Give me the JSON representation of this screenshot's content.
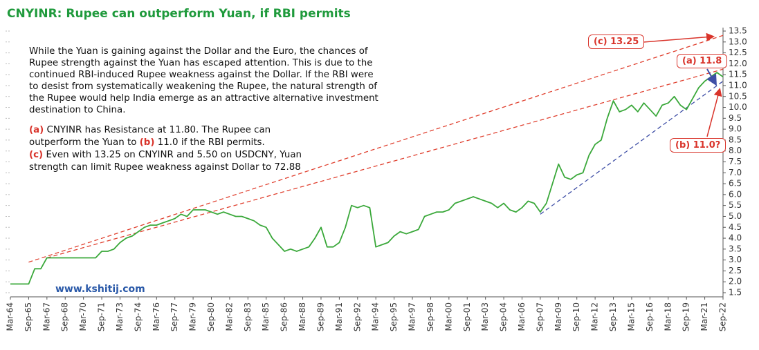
{
  "chart_data": {
    "type": "line",
    "title": "CNYINR: Rupee can outperform Yuan, if RBI permits",
    "paragraph": "While the Yuan is gaining against the Dollar and the Euro, the chances of Rupee strength against the Yuan has escaped attention. This is due to the continued RBI-induced Rupee weakness against the Dollar. If the RBI were to desist from systematically weakening the Rupee, the natural strength of the Rupee would help India emerge as an attractive alternative investment destination to China.",
    "notes": [
      {
        "tag": "(a)",
        "text": "CNYINR has Resistance at 11.80. The Rupee can outperform the Yuan to",
        "tag2": "(b)",
        "text2": "11.0 if the RBI permits."
      },
      {
        "tag": "(c)",
        "text": "Even with 13.25 on CNYINR and 5.50 on USDCNY, Yuan strength can limit Rupee weakness against Dollar to 72.88"
      }
    ],
    "website": "www.kshitij.com",
    "callouts": {
      "c": "(c) 13.25",
      "a": "(a) 11.8",
      "b": "(b) 11.0?"
    },
    "categories": [
      "Mar-64",
      null,
      null,
      "Sep-65",
      null,
      null,
      "Mar-67",
      null,
      null,
      "Sep-68",
      null,
      null,
      "Mar-70",
      null,
      null,
      "Sep-71",
      null,
      null,
      "Mar-73",
      null,
      null,
      "Sep-74",
      null,
      null,
      "Mar-76",
      null,
      null,
      "Sep-77",
      null,
      null,
      "Mar-79",
      null,
      null,
      "Sep-80",
      null,
      null,
      "Mar-82",
      null,
      null,
      "Sep-83",
      null,
      null,
      "Mar-85",
      null,
      null,
      "Sep-86",
      null,
      null,
      "Mar-88",
      null,
      null,
      "Sep-89",
      null,
      null,
      "Mar-91",
      null,
      null,
      "Sep-92",
      null,
      null,
      "Mar-94",
      null,
      null,
      "Sep-95",
      null,
      null,
      "Mar-97",
      null,
      null,
      "Sep-98",
      null,
      null,
      "Mar-00",
      null,
      null,
      "Sep-01",
      null,
      null,
      "Mar-03",
      null,
      null,
      "Sep-04",
      null,
      null,
      "Mar-06",
      null,
      null,
      "Sep-07",
      null,
      null,
      "Mar-09",
      null,
      null,
      "Sep-10",
      null,
      null,
      "Mar-12",
      null,
      null,
      "Sep-13",
      null,
      null,
      "Mar-15",
      null,
      null,
      "Sep-16",
      null,
      null,
      "Mar-18",
      null,
      null,
      "Sep-19",
      null,
      null,
      "Mar-21",
      null,
      null,
      "Sep-22"
    ],
    "series": [
      {
        "name": "CNYINR",
        "color": "#3aa83a",
        "values": [
          1.9,
          1.9,
          1.9,
          1.9,
          2.6,
          2.6,
          3.1,
          3.1,
          3.1,
          3.1,
          3.1,
          3.1,
          3.1,
          3.1,
          3.1,
          3.4,
          3.4,
          3.5,
          3.8,
          4.0,
          4.1,
          4.3,
          4.5,
          4.6,
          4.6,
          4.7,
          4.8,
          4.9,
          5.1,
          5.0,
          5.3,
          5.3,
          5.3,
          5.2,
          5.1,
          5.2,
          5.1,
          5.0,
          5.0,
          4.9,
          4.8,
          4.6,
          4.5,
          4.0,
          3.7,
          3.4,
          3.5,
          3.4,
          3.5,
          3.6,
          4.0,
          4.5,
          3.6,
          3.6,
          3.8,
          4.5,
          5.5,
          5.4,
          5.5,
          5.4,
          3.6,
          3.7,
          3.8,
          4.1,
          4.3,
          4.2,
          4.3,
          4.4,
          5.0,
          5.1,
          5.2,
          5.2,
          5.3,
          5.6,
          5.7,
          5.8,
          5.9,
          5.8,
          5.7,
          5.6,
          5.4,
          5.6,
          5.3,
          5.2,
          5.4,
          5.7,
          5.6,
          5.2,
          5.6,
          6.5,
          7.4,
          6.8,
          6.7,
          6.9,
          7.0,
          7.8,
          8.3,
          8.5,
          9.5,
          10.3,
          9.8,
          9.9,
          10.1,
          9.8,
          10.2,
          9.9,
          9.6,
          10.1,
          10.2,
          10.5,
          10.1,
          9.9,
          10.4,
          10.9,
          11.2,
          11.4,
          11.6,
          11.4
        ]
      }
    ],
    "trendlines": [
      {
        "x": [
          "Sep-65",
          "Sep-22"
        ],
        "values": [
          2.9,
          13.3
        ],
        "color": "#e0402f",
        "dash": true
      },
      {
        "x": [
          "Mar-67",
          "Sep-22"
        ],
        "values": [
          3.1,
          11.75
        ],
        "color": "#e0402f",
        "dash": true
      },
      {
        "x": [
          "Sep-07",
          "Sep-22"
        ],
        "values": [
          5.1,
          11.2
        ],
        "color": "#3f4fa6",
        "dash": true
      }
    ],
    "ylim": [
      1.5,
      13.5
    ],
    "yticks": [
      1.5,
      {
        "value": 2,
        "label": "2.0"
      },
      2.5,
      {
        "value": 3,
        "label": "3.0"
      },
      3.5,
      {
        "value": 4,
        "label": "4.0"
      },
      4.5,
      {
        "value": 5,
        "label": "5.0"
      },
      5.5,
      {
        "value": 6,
        "label": "6.0"
      },
      6.5,
      {
        "value": 7,
        "label": "7.0"
      },
      7.5,
      {
        "value": 8,
        "label": "8.0"
      },
      8.5,
      {
        "value": 9,
        "label": "9.0"
      },
      9.5,
      {
        "value": 10,
        "label": "10.0"
      },
      10.5,
      {
        "value": 11,
        "label": "11.0"
      },
      11.5,
      {
        "value": 12,
        "label": "12.0"
      },
      12.5,
      {
        "value": 13,
        "label": "13.0"
      },
      13.5
    ],
    "y_axis_side": "right"
  }
}
